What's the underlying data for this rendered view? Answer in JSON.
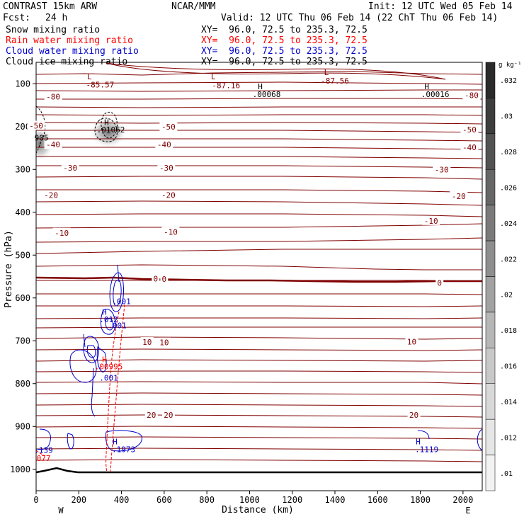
{
  "header": {
    "model": "CONTRAST 15km ARW",
    "fcst_label": "Fcst:",
    "fcst_value": "24 h",
    "center": "NCAR/MMM",
    "init": "Init: 12 UTC Wed 05 Feb 14",
    "valid": "Valid: 12 UTC Thu 06 Feb 14 (22 ChT Thu 06 Feb 14)"
  },
  "fields": [
    {
      "name": "Snow mixing ratio",
      "xy": "XY=  96.0, 72.5 to 235.3, 72.5",
      "color": "#000000"
    },
    {
      "name": "Rain water mixing ratio",
      "xy": "XY=  96.0, 72.5 to 235.3, 72.5",
      "color": "#ff0000"
    },
    {
      "name": "Cloud water mixing ratio",
      "xy": "XY=  96.0, 72.5 to 235.3, 72.5",
      "color": "#0000cc"
    },
    {
      "name": "Cloud ice mixing ratio",
      "xy": "XY=  96.0, 72.5 to 235.3, 72.5",
      "color": "#000000"
    }
  ],
  "chart_data": {
    "type": "cross-section",
    "xlabel": "Distance (km)",
    "ylabel": "Pressure (hPa)",
    "xlim": [
      0,
      2090
    ],
    "ylim": [
      1050,
      50
    ],
    "xticks": [
      0,
      200,
      400,
      600,
      800,
      1000,
      1200,
      1400,
      1600,
      1800,
      2000
    ],
    "yticks": [
      100,
      200,
      300,
      400,
      500,
      600,
      700,
      800,
      900,
      1000
    ],
    "x_end_labels": {
      "left": "W",
      "right": "E"
    },
    "colorbar": {
      "unit": "g kg⁻¹",
      "ticks": [
        0.032,
        0.03,
        0.028,
        0.026,
        0.024,
        0.022,
        0.02,
        0.018,
        0.016,
        0.014,
        0.012,
        0.01
      ],
      "tick_labels": [
        ".032",
        ".03",
        ".028",
        ".026",
        ".024",
        ".022",
        ".02",
        ".018",
        ".016",
        ".014",
        ".012",
        ".01"
      ],
      "colors": [
        "#2a2a2a",
        "#3d3d3d",
        "#525252",
        "#666666",
        "#7a7a7a",
        "#8e8e8e",
        "#a2a2a2",
        "#b6b6b6",
        "#c8c8c8",
        "#d8d8d8",
        "#e6e6e6",
        "#f2f2f2"
      ]
    },
    "temperature_labels": [
      {
        "text": "-80",
        "x": 80,
        "p": 130
      },
      {
        "text": "-80",
        "x": 2040,
        "p": 127
      },
      {
        "text": "-50",
        "x": 0,
        "p": 198
      },
      {
        "text": "-50",
        "x": 620,
        "p": 200
      },
      {
        "text": "-50",
        "x": 2030,
        "p": 207
      },
      {
        "text": "-40",
        "x": 80,
        "p": 242
      },
      {
        "text": "-40",
        "x": 600,
        "p": 242
      },
      {
        "text": "-40",
        "x": 2030,
        "p": 248
      },
      {
        "text": "-30",
        "x": 160,
        "p": 296
      },
      {
        "text": "-30",
        "x": 610,
        "p": 296
      },
      {
        "text": "-30",
        "x": 1900,
        "p": 300
      },
      {
        "text": "-20",
        "x": 70,
        "p": 360
      },
      {
        "text": "-20",
        "x": 620,
        "p": 360
      },
      {
        "text": "-20",
        "x": 1980,
        "p": 362
      },
      {
        "text": "-10",
        "x": 120,
        "p": 448
      },
      {
        "text": "-10",
        "x": 630,
        "p": 446
      },
      {
        "text": "-10",
        "x": 1850,
        "p": 420
      },
      {
        "text": "0",
        "x": 560,
        "p": 555
      },
      {
        "text": "0",
        "x": 600,
        "p": 556
      },
      {
        "text": "0",
        "x": 1890,
        "p": 565
      },
      {
        "text": "10",
        "x": 520,
        "p": 703
      },
      {
        "text": "10",
        "x": 600,
        "p": 704
      },
      {
        "text": "10",
        "x": 1760,
        "p": 702
      },
      {
        "text": "20",
        "x": 540,
        "p": 873
      },
      {
        "text": "20",
        "x": 620,
        "p": 873
      },
      {
        "text": "20",
        "x": 1770,
        "p": 873
      }
    ],
    "extrema_labels": [
      {
        "text": "L",
        "x": 250,
        "p": 83,
        "color": "#800000"
      },
      {
        "text": "-85.57",
        "x": 300,
        "p": 102,
        "color": "#800000"
      },
      {
        "text": "L",
        "x": 830,
        "p": 83,
        "color": "#800000"
      },
      {
        "text": "-87.16",
        "x": 890,
        "p": 104,
        "color": "#800000"
      },
      {
        "text": "L",
        "x": 1360,
        "p": 73,
        "color": "#800000"
      },
      {
        "text": "-87.56",
        "x": 1400,
        "p": 93,
        "color": "#800000"
      },
      {
        "text": "H",
        "x": 1050,
        "p": 106,
        "color": "#000000"
      },
      {
        "text": ".00068",
        "x": 1080,
        "p": 124,
        "color": "#000000"
      },
      {
        "text": "H",
        "x": 1830,
        "p": 106,
        "color": "#000000"
      },
      {
        "text": ".00016",
        "x": 1870,
        "p": 124,
        "color": "#000000"
      },
      {
        "text": "H",
        "x": 330,
        "p": 190,
        "color": "#000000"
      },
      {
        "text": ".01062",
        "x": 350,
        "p": 207,
        "color": "#000000"
      },
      {
        "text": "905",
        "x": 25,
        "p": 226,
        "color": "#000000"
      },
      {
        "text": ".001",
        "x": 400,
        "p": 608,
        "color": "#0000cc"
      },
      {
        "text": "H",
        "x": 320,
        "p": 633,
        "color": "#0000cc"
      },
      {
        "text": ".012",
        "x": 340,
        "p": 650,
        "color": "#0000cc"
      },
      {
        "text": ".001",
        "x": 380,
        "p": 664,
        "color": "#0000cc"
      },
      {
        "text": "H",
        "x": 320,
        "p": 743,
        "color": "#ff0000"
      },
      {
        "text": ".00995",
        "x": 340,
        "p": 760,
        "color": "#ff0000"
      },
      {
        "text": ".001",
        "x": 340,
        "p": 786,
        "color": "#0000cc"
      },
      {
        "text": "H",
        "x": 370,
        "p": 935,
        "color": "#0000cc"
      },
      {
        "text": ".1973",
        "x": 410,
        "p": 953,
        "color": "#0000cc"
      },
      {
        "text": ".139",
        "x": 35,
        "p": 955,
        "color": "#0000cc"
      },
      {
        "text": "077",
        "x": 35,
        "p": 974,
        "color": "#ff0000"
      },
      {
        "text": "H",
        "x": 1790,
        "p": 935,
        "color": "#0000cc"
      },
      {
        "text": ".1119",
        "x": 1830,
        "p": 953,
        "color": "#0000cc"
      }
    ]
  }
}
